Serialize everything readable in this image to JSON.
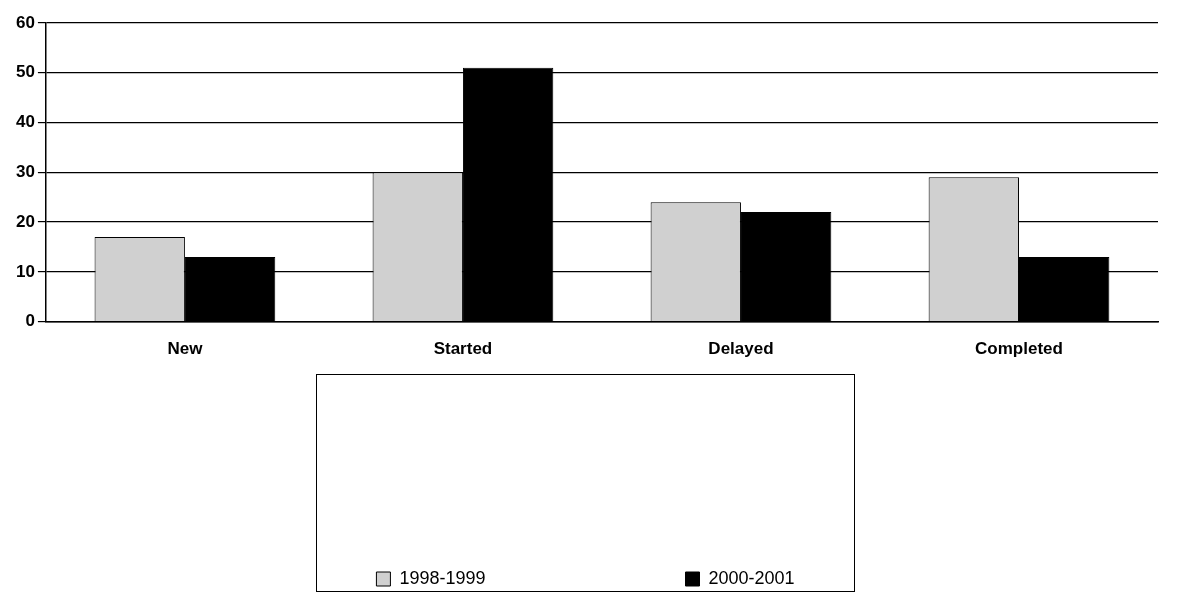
{
  "chart_data": {
    "type": "bar",
    "categories": [
      "New",
      "Started",
      "Delayed",
      "Completed"
    ],
    "series": [
      {
        "name": "1998-1999",
        "color": "#d0d0d0",
        "values": [
          17,
          30,
          24,
          29
        ]
      },
      {
        "name": "2000-2001",
        "color": "#000000",
        "values": [
          13,
          51,
          22,
          13
        ]
      }
    ],
    "ylim": [
      0,
      60
    ],
    "yticks": [
      0,
      10,
      20,
      30,
      40,
      50,
      60
    ],
    "grid": "y",
    "legend": "bottom"
  }
}
